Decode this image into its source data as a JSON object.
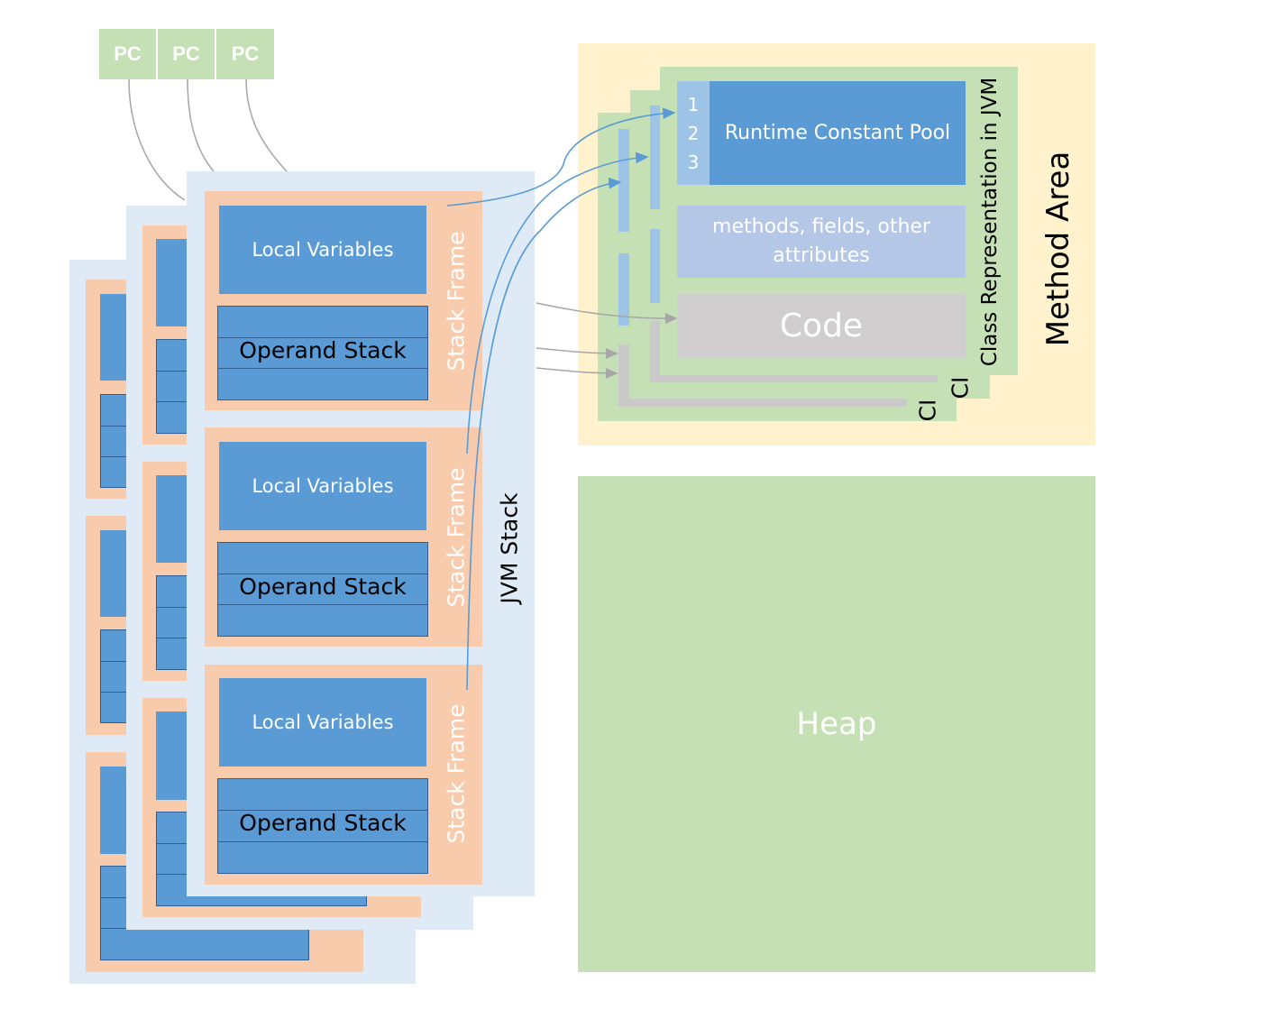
{
  "pc_labels": [
    "PC",
    "PC",
    "PC"
  ],
  "stack_frame_label": "Stack Frame",
  "local_variables_label": "Local Variables",
  "operand_stack_label": "Operand Stack",
  "jvm_stack_label": "JVM Stack",
  "method_area": {
    "title": "Method Area",
    "class_representation_label": "Class Representation in JVM",
    "ci_labels": [
      "CI",
      "CI"
    ],
    "runtime_constant_pool": {
      "label": "Runtime Constant Pool",
      "indices": [
        "1",
        "2",
        "3"
      ]
    },
    "methods_label": "methods, fields, other attributes",
    "code_label": "Code"
  },
  "heap_label": "Heap",
  "colors": {
    "pc": "#c5e0b4",
    "jvm_stack": "#deebf7",
    "stack_frame": "#f8cbad",
    "local_variables": "#5b9bd5",
    "method_area": "#fff2cc",
    "class_representation": "#c5e0b4",
    "code": "#d0cece",
    "heap": "#c5e0b4",
    "reference_arrow": "#5b9bd5",
    "connector": "#a6a6a6"
  }
}
